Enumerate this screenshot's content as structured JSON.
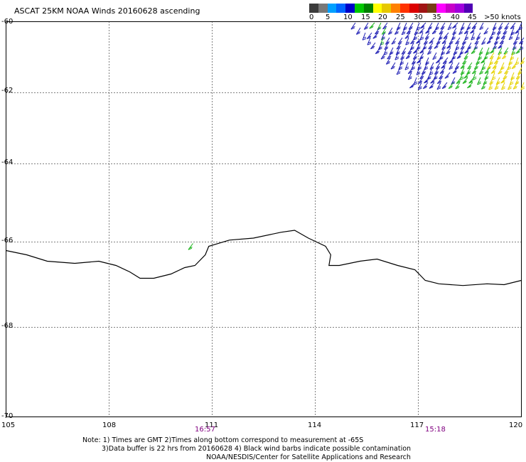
{
  "title": "ASCAT 25KM NOAA Winds 20160628 ascending",
  "colorbar": {
    "colors": [
      "#3c3c3c",
      "#787878",
      "#00a0ff",
      "#0064ff",
      "#0000c8",
      "#00c800",
      "#008000",
      "#ffff00",
      "#e6c800",
      "#ff8000",
      "#ff3200",
      "#dc0000",
      "#a01414",
      "#783c14",
      "#ff00ff",
      "#c800c8",
      "#a000dc",
      "#5000b4"
    ],
    "labels": [
      "0",
      "5",
      "10",
      "15",
      "20",
      "25",
      "30",
      "35",
      "40",
      "45",
      ">50 knots"
    ]
  },
  "axes": {
    "y_ticks": [
      "-60",
      "-62",
      "-64",
      "-66",
      "-68",
      "-70"
    ],
    "x_ticks": [
      "105",
      "108",
      "111",
      "114",
      "117",
      "120"
    ]
  },
  "times": [
    "16:57",
    "15:18"
  ],
  "notes": [
    "Note: 1) Times are GMT 2)Times along bottom correspond to measurement at -65S",
    "3)Data buffer is 22 hrs from 20160628 4) Black wind barbs indicate possible contamination",
    "NOAA/NESDIS/Center for Satellite Applications and Research"
  ],
  "wind_colors": {
    "low": "#1e1eb4",
    "mid": "#1eb41e",
    "high": "#e6d200"
  },
  "chart_data": {
    "type": "map",
    "title": "ASCAT 25KM NOAA Winds 20160628 ascending",
    "xlim": [
      105,
      120
    ],
    "ylim": [
      -70,
      -60
    ],
    "x_ticks": [
      105,
      108,
      111,
      114,
      117,
      120
    ],
    "y_ticks": [
      -60,
      -62,
      -64,
      -66,
      -68,
      -70
    ],
    "grid": true,
    "coastline": [
      [
        105,
        -66.2
      ],
      [
        105.6,
        -66.3
      ],
      [
        106.2,
        -66.45
      ],
      [
        107,
        -66.5
      ],
      [
        107.7,
        -66.45
      ],
      [
        108.2,
        -66.55
      ],
      [
        108.6,
        -66.7
      ],
      [
        108.9,
        -66.85
      ],
      [
        109.3,
        -66.85
      ],
      [
        109.8,
        -66.75
      ],
      [
        110.2,
        -66.6
      ],
      [
        110.5,
        -66.55
      ],
      [
        110.8,
        -66.3
      ],
      [
        110.9,
        -66.1
      ],
      [
        111.5,
        -65.95
      ],
      [
        112.2,
        -65.9
      ],
      [
        113,
        -65.75
      ],
      [
        113.4,
        -65.7
      ],
      [
        113.8,
        -65.9
      ],
      [
        114.3,
        -66.1
      ],
      [
        114.45,
        -66.3
      ],
      [
        114.4,
        -66.55
      ],
      [
        114.7,
        -66.55
      ],
      [
        115.3,
        -66.45
      ],
      [
        115.8,
        -66.4
      ],
      [
        116.4,
        -66.55
      ],
      [
        116.9,
        -66.65
      ],
      [
        117.2,
        -66.9
      ],
      [
        117.6,
        -66.98
      ],
      [
        118.3,
        -67.02
      ],
      [
        119,
        -66.98
      ],
      [
        119.5,
        -67.0
      ],
      [
        120,
        -66.9
      ]
    ],
    "wind_barbs": {
      "region": {
        "lon": [
          115.6,
          120
        ],
        "lat": [
          -62.0,
          -60
        ]
      },
      "ranges_knots": [
        [
          10,
          15
        ],
        [
          15,
          20
        ],
        [
          20,
          25
        ]
      ],
      "isolated": [
        {
          "lon": 110.4,
          "lat": -66.1,
          "range_knots": [
            15,
            20
          ]
        }
      ]
    },
    "time_labels": [
      {
        "lon": 110.8,
        "time": "16:57"
      },
      {
        "lon": 117.3,
        "time": "15:18"
      }
    ]
  }
}
